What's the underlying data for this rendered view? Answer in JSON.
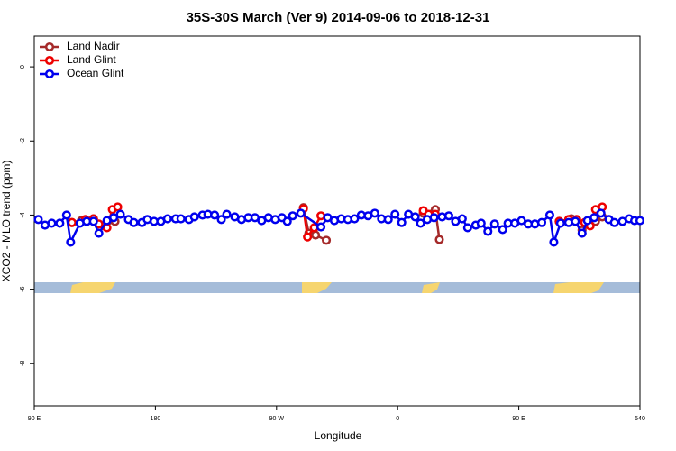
{
  "chart_data": {
    "type": "line",
    "title": "35S-30S March (Ver 9)   2014-09-06 to 2018-12-31",
    "xlabel": "Longitude",
    "ylabel": "XCO2 - MLO trend (ppm)",
    "xlim": [
      90,
      540
    ],
    "xticks": [
      {
        "value": 90,
        "label": "90 E"
      },
      180,
      {
        "value": 270,
        "label": "90 W"
      },
      {
        "value": 360,
        "label": "0"
      },
      {
        "value": 450,
        "label": "90 E"
      },
      540
    ],
    "ylim": [
      -9.15,
      0.83
    ],
    "yticks": [
      0,
      -2,
      -4,
      -6,
      -8
    ],
    "legend": "top-left",
    "series": [
      {
        "name": "Land Nadir",
        "color": "#a52a2a",
        "x": [
          118,
          125,
          134,
          142,
          150,
          null,
          290,
          294,
          299,
          307,
          null,
          379,
          388,
          391,
          null,
          480,
          489,
          497,
          507,
          512
        ],
        "values": [
          -4.2,
          -4.15,
          -4.1,
          -4.29,
          -4.17,
          null,
          -3.8,
          -4.49,
          -4.54,
          -4.68,
          null,
          -3.95,
          -3.85,
          -4.66,
          null,
          -4.17,
          -4.1,
          -4.41,
          -4.17,
          -4.05
        ]
      },
      {
        "name": "Land Glint",
        "color": "#ee0000",
        "x": [
          118,
          128,
          134,
          138,
          144,
          148,
          152,
          null,
          290,
          293,
          298,
          303,
          null,
          379,
          383,
          388,
          null,
          480,
          487,
          493,
          499,
          503,
          507,
          512
        ],
        "values": [
          -4.2,
          -4.12,
          -4.1,
          -4.24,
          -4.34,
          -3.85,
          -3.78,
          null,
          -3.83,
          -4.59,
          -4.34,
          -4.02,
          null,
          -3.88,
          -3.98,
          -3.98,
          null,
          -4.17,
          -4.12,
          -4.12,
          -4.2,
          -4.29,
          -3.85,
          -3.78
        ]
      },
      {
        "name": "Ocean Glint",
        "color": "#0000ee",
        "x": [
          93,
          98,
          103,
          109,
          114,
          117,
          124,
          129,
          134,
          138,
          144,
          149,
          154,
          160,
          164,
          170,
          174,
          179,
          184,
          189,
          195,
          199,
          205,
          209,
          215,
          219,
          224,
          229,
          233,
          239,
          244,
          249,
          254,
          259,
          264,
          269,
          274,
          278,
          282,
          288,
          303,
          308,
          313,
          318,
          323,
          328,
          333,
          338,
          343,
          348,
          353,
          358,
          363,
          368,
          373,
          377,
          382,
          387,
          393,
          398,
          403,
          408,
          412,
          418,
          422,
          427,
          432,
          438,
          442,
          447,
          452,
          457,
          462,
          467,
          473,
          476,
          481,
          487,
          492,
          497,
          501,
          506,
          511,
          517,
          521,
          527,
          532,
          536,
          540
        ],
        "values": [
          -4.12,
          -4.27,
          -4.22,
          -4.22,
          -4.0,
          -4.73,
          -4.22,
          -4.17,
          -4.17,
          -4.49,
          -4.15,
          -4.07,
          -3.98,
          -4.12,
          -4.2,
          -4.2,
          -4.12,
          -4.17,
          -4.17,
          -4.1,
          -4.1,
          -4.1,
          -4.12,
          -4.05,
          -4.0,
          -3.98,
          -4.0,
          -4.12,
          -3.98,
          -4.05,
          -4.12,
          -4.07,
          -4.07,
          -4.15,
          -4.07,
          -4.12,
          -4.07,
          -4.17,
          -4.02,
          -3.95,
          -4.32,
          -4.07,
          -4.15,
          -4.1,
          -4.12,
          -4.1,
          -4.0,
          -4.02,
          -3.95,
          -4.1,
          -4.12,
          -3.98,
          -4.2,
          -3.98,
          -4.05,
          -4.22,
          -4.12,
          -4.07,
          -4.05,
          -4.02,
          -4.17,
          -4.1,
          -4.34,
          -4.27,
          -4.22,
          -4.44,
          -4.24,
          -4.39,
          -4.22,
          -4.22,
          -4.15,
          -4.24,
          -4.24,
          -4.2,
          -4.0,
          -4.73,
          -4.22,
          -4.2,
          -4.17,
          -4.49,
          -4.15,
          -4.07,
          -3.95,
          -4.12,
          -4.2,
          -4.17,
          -4.1,
          -4.15,
          -4.15
        ]
      }
    ]
  }
}
